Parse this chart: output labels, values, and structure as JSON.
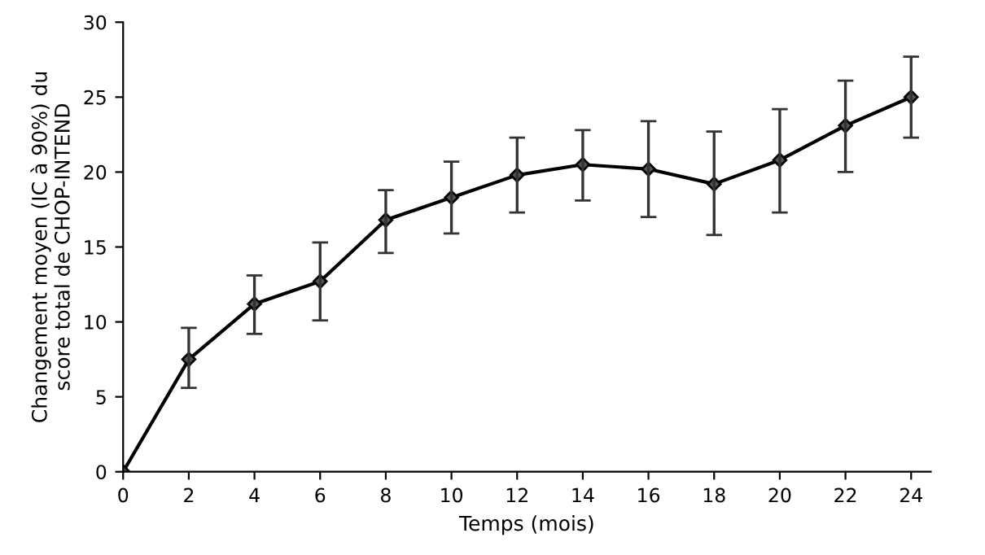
{
  "chart_data": {
    "type": "line",
    "xlabel": "Temps (mois)",
    "ylabel": "Changement moyen (IC à 90%) du\nscore total de CHOP-INTEND",
    "x": [
      0,
      2,
      4,
      6,
      8,
      10,
      12,
      14,
      16,
      18,
      20,
      22,
      24
    ],
    "series": [
      {
        "color": "#000000",
        "values": [
          0,
          7.5,
          11.2,
          12.7,
          16.8,
          18.3,
          19.8,
          20.5,
          20.2,
          19.2,
          20.8,
          23.1,
          25.0
        ],
        "errors": [
          null,
          [
            5.6,
            9.6
          ],
          [
            9.2,
            13.1
          ],
          [
            10.1,
            15.3
          ],
          [
            14.6,
            18.8
          ],
          [
            15.9,
            20.7
          ],
          [
            17.3,
            22.3
          ],
          [
            18.1,
            22.8
          ],
          [
            17.0,
            23.4
          ],
          [
            15.8,
            22.7
          ],
          [
            17.3,
            24.2
          ],
          [
            20.0,
            26.1
          ],
          [
            22.3,
            27.7
          ]
        ]
      }
    ],
    "xlim": [
      0,
      24.6
    ],
    "xticks": [
      0,
      2,
      4,
      6,
      8,
      10,
      12,
      14,
      16,
      18,
      20,
      22,
      24
    ],
    "ylim": [
      0,
      30
    ],
    "yticks": [
      0,
      5,
      10,
      15,
      20,
      25,
      30
    ],
    "marker": "diamond",
    "line_style": "solid",
    "grid": false,
    "legend": false
  }
}
